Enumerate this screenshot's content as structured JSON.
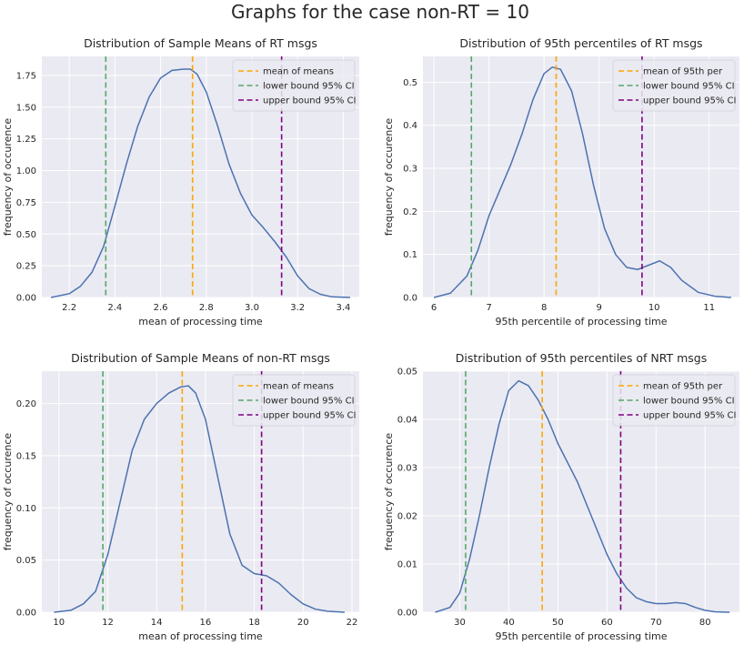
{
  "figure": {
    "suptitle": "Graphs for the case non-RT = 10"
  },
  "colors": {
    "curve": "#4c72b0",
    "mean": "#ffa500",
    "lower": "#55a868",
    "upper": "#800080",
    "background": "#eaeaf2"
  },
  "chart_data": [
    {
      "type": "line",
      "title": "Distribution of Sample Means of RT msgs",
      "xlabel": "mean of processing time",
      "ylabel": "frequency of occurence",
      "xlim": [
        2.08,
        3.47
      ],
      "ylim": [
        0,
        1.9
      ],
      "xticks": [
        2.2,
        2.4,
        2.6,
        2.8,
        3.0,
        3.2,
        3.4
      ],
      "xtick_labels": [
        "2.2",
        "2.4",
        "2.6",
        "2.8",
        "3.0",
        "3.2",
        "3.4"
      ],
      "yticks": [
        0,
        0.25,
        0.5,
        0.75,
        1.0,
        1.25,
        1.5,
        1.75
      ],
      "ytick_labels": [
        "0.00",
        "0.25",
        "0.50",
        "0.75",
        "1.00",
        "1.25",
        "1.50",
        "1.75"
      ],
      "grid": true,
      "legend_position": "upper right",
      "series": [
        {
          "x": [
            2.12,
            2.2,
            2.25,
            2.3,
            2.35,
            2.4,
            2.45,
            2.5,
            2.55,
            2.6,
            2.65,
            2.7,
            2.73,
            2.76,
            2.8,
            2.85,
            2.9,
            2.95,
            3.0,
            3.05,
            3.1,
            3.15,
            3.2,
            3.25,
            3.3,
            3.35,
            3.43
          ],
          "y": [
            0.0,
            0.03,
            0.09,
            0.2,
            0.4,
            0.72,
            1.05,
            1.35,
            1.58,
            1.73,
            1.79,
            1.8,
            1.8,
            1.76,
            1.62,
            1.35,
            1.05,
            0.82,
            0.65,
            0.55,
            0.44,
            0.32,
            0.17,
            0.07,
            0.025,
            0.005,
            0.0
          ]
        }
      ],
      "vlines": [
        {
          "name": "mean of means",
          "x": 2.74,
          "color": "#ffa500"
        },
        {
          "name": "lower bound 95% CI",
          "x": 2.36,
          "color": "#55a868"
        },
        {
          "name": "upper bound 95% CI",
          "x": 3.13,
          "color": "#800080"
        }
      ]
    },
    {
      "type": "line",
      "title": "Distribution of 95th percentiles of RT msgs",
      "xlabel": "95th percentile of processing time",
      "ylabel": "frequency of occurence",
      "xlim": [
        5.8,
        11.55
      ],
      "ylim": [
        0,
        0.56
      ],
      "xticks": [
        6,
        7,
        8,
        9,
        10,
        11
      ],
      "xtick_labels": [
        "6",
        "7",
        "8",
        "9",
        "10",
        "11"
      ],
      "yticks": [
        0,
        0.1,
        0.2,
        0.3,
        0.4,
        0.5
      ],
      "ytick_labels": [
        "0.0",
        "0.1",
        "0.2",
        "0.3",
        "0.4",
        "0.5"
      ],
      "grid": true,
      "legend_position": "upper right",
      "series": [
        {
          "x": [
            6.0,
            6.3,
            6.6,
            6.8,
            7.0,
            7.2,
            7.4,
            7.6,
            7.8,
            8.0,
            8.15,
            8.3,
            8.5,
            8.7,
            8.9,
            9.1,
            9.3,
            9.5,
            9.7,
            9.9,
            10.1,
            10.3,
            10.5,
            10.8,
            11.1,
            11.4
          ],
          "y": [
            0.0,
            0.01,
            0.05,
            0.11,
            0.19,
            0.25,
            0.31,
            0.38,
            0.46,
            0.52,
            0.535,
            0.53,
            0.48,
            0.38,
            0.26,
            0.16,
            0.1,
            0.07,
            0.065,
            0.075,
            0.085,
            0.07,
            0.04,
            0.012,
            0.003,
            0.0
          ]
        }
      ],
      "vlines": [
        {
          "name": "mean of 95th per",
          "x": 8.22,
          "color": "#ffa500"
        },
        {
          "name": "lower bound 95% CI",
          "x": 6.68,
          "color": "#55a868"
        },
        {
          "name": "upper bound 95% CI",
          "x": 9.78,
          "color": "#800080"
        }
      ]
    },
    {
      "type": "line",
      "title": "Distribution of Sample Means of non-RT msgs",
      "xlabel": "mean of processing time",
      "ylabel": "frequency of occurence",
      "xlim": [
        9.3,
        22.3
      ],
      "ylim": [
        0,
        0.231
      ],
      "xticks": [
        10,
        12,
        14,
        16,
        18,
        20,
        22
      ],
      "xtick_labels": [
        "10",
        "12",
        "14",
        "16",
        "18",
        "20",
        "22"
      ],
      "yticks": [
        0,
        0.05,
        0.1,
        0.15,
        0.2
      ],
      "ytick_labels": [
        "0.00",
        "0.05",
        "0.10",
        "0.15",
        "0.20"
      ],
      "grid": true,
      "legend_position": "upper right",
      "series": [
        {
          "x": [
            9.8,
            10.5,
            11.0,
            11.5,
            12.0,
            12.5,
            13.0,
            13.5,
            14.0,
            14.5,
            15.0,
            15.3,
            15.6,
            16.0,
            16.5,
            17.0,
            17.5,
            18.0,
            18.5,
            19.0,
            19.5,
            20.0,
            20.5,
            21.0,
            21.7
          ],
          "y": [
            0.0,
            0.002,
            0.008,
            0.02,
            0.055,
            0.105,
            0.155,
            0.185,
            0.2,
            0.21,
            0.216,
            0.217,
            0.21,
            0.185,
            0.13,
            0.075,
            0.045,
            0.037,
            0.035,
            0.028,
            0.017,
            0.008,
            0.003,
            0.001,
            0.0
          ]
        }
      ],
      "vlines": [
        {
          "name": "mean of means",
          "x": 15.05,
          "color": "#ffa500"
        },
        {
          "name": "lower bound 95% CI",
          "x": 11.8,
          "color": "#55a868"
        },
        {
          "name": "upper bound 95% CI",
          "x": 18.3,
          "color": "#800080"
        }
      ]
    },
    {
      "type": "line",
      "title": "Distribution of 95th percentiles of NRT msgs",
      "xlabel": "95th percentile of processing time",
      "ylabel": "frequency of occurence",
      "xlim": [
        22.5,
        87.0
      ],
      "ylim": [
        0,
        0.05
      ],
      "xticks": [
        30,
        40,
        50,
        60,
        70,
        80
      ],
      "xtick_labels": [
        "30",
        "40",
        "50",
        "60",
        "70",
        "80"
      ],
      "yticks": [
        0,
        0.01,
        0.02,
        0.03,
        0.04,
        0.05
      ],
      "ytick_labels": [
        "0.00",
        "0.01",
        "0.02",
        "0.03",
        "0.04",
        "0.05"
      ],
      "grid": true,
      "legend_position": "upper right",
      "series": [
        {
          "x": [
            25,
            28,
            30,
            32,
            34,
            36,
            38,
            40,
            42,
            44,
            46,
            48,
            50,
            52,
            54,
            56,
            58,
            60,
            62,
            64,
            66,
            68,
            70,
            72,
            74,
            76,
            78,
            80,
            82,
            85
          ],
          "y": [
            0.0,
            0.001,
            0.004,
            0.011,
            0.02,
            0.03,
            0.039,
            0.046,
            0.048,
            0.047,
            0.044,
            0.04,
            0.035,
            0.031,
            0.027,
            0.022,
            0.017,
            0.012,
            0.008,
            0.005,
            0.003,
            0.0022,
            0.0018,
            0.0018,
            0.002,
            0.0018,
            0.001,
            0.0004,
            0.0001,
            0.0
          ]
        }
      ],
      "vlines": [
        {
          "name": "mean of 95th per",
          "x": 46.8,
          "color": "#ffa500"
        },
        {
          "name": "lower bound 95% CI",
          "x": 31.2,
          "color": "#55a868"
        },
        {
          "name": "upper bound 95% CI",
          "x": 62.8,
          "color": "#800080"
        }
      ]
    }
  ]
}
